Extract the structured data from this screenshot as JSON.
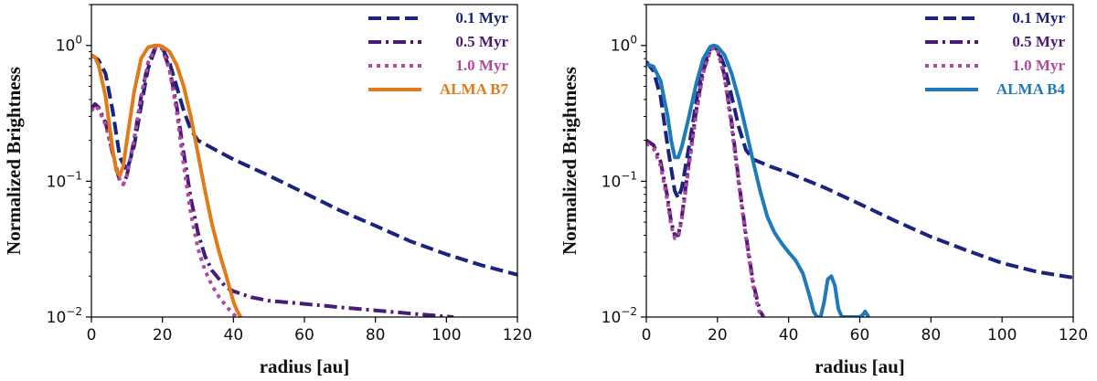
{
  "chart_data": [
    {
      "type": "line",
      "panel": "left",
      "xlabel": "radius [au]",
      "ylabel": "Normalized Brightness",
      "xlim": [
        0,
        120
      ],
      "ylim": [
        0.01,
        2
      ],
      "yscale": "log",
      "grid": false,
      "legend_placement": "top-right",
      "xticks": [
        "0",
        "20",
        "40",
        "60",
        "80",
        "100",
        "120"
      ],
      "yticks": [
        {
          "value": 1,
          "base": "10",
          "exp": "0"
        },
        {
          "value": 0.1,
          "base": "10",
          "exp": "−1"
        },
        {
          "value": 0.01,
          "base": "10",
          "exp": "−2"
        }
      ],
      "series": [
        {
          "name": "0.1 Myr",
          "color": "#1a237e",
          "style": "dashed",
          "x": [
            0,
            2,
            4,
            6,
            8,
            10,
            12,
            14,
            16,
            18,
            19,
            20,
            22,
            24,
            26,
            28,
            30,
            35,
            40,
            50,
            60,
            70,
            80,
            90,
            100,
            110,
            120
          ],
          "y": [
            0.85,
            0.78,
            0.62,
            0.33,
            0.15,
            0.12,
            0.18,
            0.36,
            0.68,
            0.95,
            0.98,
            0.95,
            0.75,
            0.5,
            0.33,
            0.24,
            0.2,
            0.17,
            0.145,
            0.11,
            0.082,
            0.061,
            0.047,
            0.036,
            0.029,
            0.024,
            0.0205
          ]
        },
        {
          "name": "0.5 Myr",
          "color": "#4a1a78",
          "style": "dashdot",
          "x": [
            0,
            1,
            2,
            4,
            6,
            8,
            9,
            10,
            12,
            14,
            16,
            18,
            19,
            20,
            22,
            24,
            26,
            28,
            30,
            32,
            34,
            36,
            38,
            40,
            45,
            50,
            60,
            70,
            80,
            90,
            100,
            102
          ],
          "y": [
            0.34,
            0.37,
            0.35,
            0.27,
            0.16,
            0.1,
            0.095,
            0.11,
            0.2,
            0.42,
            0.75,
            0.96,
            0.98,
            0.94,
            0.68,
            0.36,
            0.16,
            0.075,
            0.042,
            0.028,
            0.022,
            0.019,
            0.0165,
            0.0155,
            0.014,
            0.0132,
            0.0125,
            0.0118,
            0.0112,
            0.0106,
            0.0101,
            0.0099
          ]
        },
        {
          "name": "1.0 Myr",
          "color": "#b04aa0",
          "style": "dotted",
          "x": [
            0,
            1,
            2,
            4,
            6,
            8,
            9,
            10,
            12,
            14,
            16,
            18,
            19,
            20,
            22,
            24,
            26,
            28,
            30,
            32,
            34,
            36,
            38,
            40,
            41
          ],
          "y": [
            0.33,
            0.36,
            0.34,
            0.26,
            0.16,
            0.1,
            0.095,
            0.11,
            0.2,
            0.42,
            0.75,
            0.96,
            0.98,
            0.94,
            0.66,
            0.33,
            0.13,
            0.058,
            0.032,
            0.022,
            0.017,
            0.014,
            0.012,
            0.0105,
            0.0099
          ]
        },
        {
          "name": "ALMA B7",
          "color": "#e07b1a",
          "style": "solid",
          "x": [
            0,
            1,
            2,
            4,
            6,
            7,
            8,
            9,
            10,
            12,
            14,
            16,
            18,
            19,
            20,
            22,
            24,
            26,
            28,
            30,
            32,
            34,
            36,
            38,
            40,
            41,
            42
          ],
          "y": [
            0.85,
            0.82,
            0.72,
            0.42,
            0.17,
            0.12,
            0.11,
            0.13,
            0.2,
            0.45,
            0.8,
            0.97,
            1.0,
            1.0,
            0.98,
            0.9,
            0.72,
            0.5,
            0.3,
            0.16,
            0.085,
            0.048,
            0.03,
            0.02,
            0.013,
            0.0112,
            0.0099
          ]
        }
      ],
      "legend": [
        {
          "label": "0.1 Myr",
          "color": "#1a237e",
          "style": "dashed"
        },
        {
          "label": "0.5 Myr",
          "color": "#4a1a78",
          "style": "dashdot"
        },
        {
          "label": "1.0 Myr",
          "color": "#b04aa0",
          "style": "dotted"
        },
        {
          "label": "ALMA B7",
          "color": "#e07b1a",
          "style": "solid"
        }
      ]
    },
    {
      "type": "line",
      "panel": "right",
      "xlabel": "radius [au]",
      "ylabel": "Normalized Brightness",
      "xlim": [
        0,
        120
      ],
      "ylim": [
        0.01,
        2
      ],
      "yscale": "log",
      "grid": false,
      "legend_placement": "top-right",
      "xticks": [
        "0",
        "20",
        "40",
        "60",
        "80",
        "100",
        "120"
      ],
      "yticks": [
        {
          "value": 1,
          "base": "10",
          "exp": "0"
        },
        {
          "value": 0.1,
          "base": "10",
          "exp": "−1"
        },
        {
          "value": 0.01,
          "base": "10",
          "exp": "−2"
        }
      ],
      "series": [
        {
          "name": "0.1 Myr",
          "color": "#1a237e",
          "style": "dashed",
          "x": [
            0,
            2,
            4,
            6,
            8,
            9,
            10,
            12,
            14,
            16,
            18,
            19,
            20,
            22,
            24,
            26,
            28,
            30,
            35,
            40,
            50,
            60,
            70,
            80,
            90,
            100,
            110,
            120
          ],
          "y": [
            0.76,
            0.65,
            0.42,
            0.18,
            0.085,
            0.075,
            0.09,
            0.18,
            0.38,
            0.7,
            0.95,
            0.98,
            0.95,
            0.7,
            0.42,
            0.25,
            0.17,
            0.145,
            0.128,
            0.115,
            0.09,
            0.068,
            0.051,
            0.039,
            0.031,
            0.025,
            0.0215,
            0.0195
          ]
        },
        {
          "name": "0.5 Myr",
          "color": "#4a1a78",
          "style": "dashdot",
          "x": [
            0,
            2,
            4,
            6,
            7,
            8,
            9,
            10,
            12,
            14,
            16,
            18,
            19,
            20,
            22,
            24,
            26,
            28,
            30,
            31,
            32,
            33
          ],
          "y": [
            0.2,
            0.185,
            0.14,
            0.075,
            0.05,
            0.04,
            0.04,
            0.055,
            0.14,
            0.33,
            0.65,
            0.92,
            0.97,
            0.93,
            0.6,
            0.27,
            0.1,
            0.04,
            0.018,
            0.014,
            0.011,
            0.0099
          ]
        },
        {
          "name": "1.0 Myr",
          "color": "#b04aa0",
          "style": "dotted",
          "x": [
            0,
            2,
            4,
            6,
            7,
            8,
            9,
            10,
            12,
            14,
            16,
            18,
            19,
            20,
            22,
            24,
            26,
            28,
            30,
            31,
            32,
            33
          ],
          "y": [
            0.19,
            0.175,
            0.13,
            0.07,
            0.047,
            0.038,
            0.039,
            0.053,
            0.13,
            0.31,
            0.63,
            0.92,
            0.97,
            0.93,
            0.58,
            0.25,
            0.095,
            0.038,
            0.017,
            0.013,
            0.0105,
            0.0099
          ]
        },
        {
          "name": "ALMA B4",
          "color": "#1f7ab8",
          "style": "solid",
          "x": [
            0,
            2,
            4,
            6,
            7,
            8,
            9,
            10,
            12,
            14,
            16,
            18,
            19,
            20,
            22,
            24,
            26,
            28,
            30,
            32,
            34,
            36,
            38,
            40,
            42,
            44,
            46,
            47,
            48,
            49,
            50,
            51,
            52,
            53,
            54,
            55,
            56,
            58,
            60,
            61,
            61.5,
            62,
            62.5
          ],
          "y": [
            0.73,
            0.7,
            0.55,
            0.3,
            0.2,
            0.15,
            0.15,
            0.18,
            0.3,
            0.52,
            0.8,
            0.98,
            1.0,
            0.98,
            0.85,
            0.62,
            0.4,
            0.24,
            0.14,
            0.085,
            0.055,
            0.042,
            0.035,
            0.03,
            0.026,
            0.021,
            0.014,
            0.011,
            0.0099,
            0.0099,
            0.013,
            0.019,
            0.02,
            0.017,
            0.0115,
            0.0099,
            0.0099,
            0.0099,
            0.0099,
            0.0105,
            0.011,
            0.0105,
            0.0099
          ]
        }
      ],
      "legend": [
        {
          "label": "0.1 Myr",
          "color": "#1a237e",
          "style": "dashed"
        },
        {
          "label": "0.5 Myr",
          "color": "#4a1a78",
          "style": "dashdot"
        },
        {
          "label": "1.0 Myr",
          "color": "#b04aa0",
          "style": "dotted"
        },
        {
          "label": "ALMA B4",
          "color": "#1f7ab8",
          "style": "solid"
        }
      ]
    }
  ]
}
